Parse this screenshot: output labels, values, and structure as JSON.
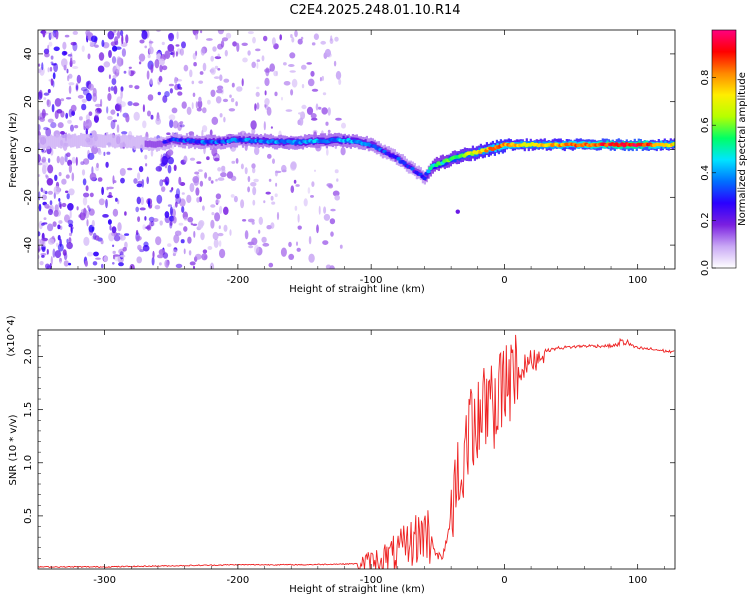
{
  "title": "C2E4.2025.248.01.10.R14",
  "chart_data": [
    {
      "type": "heatmap",
      "name": "spectrogram",
      "xlabel": "Height of straight line (km)",
      "ylabel": "Frequency (Hz)",
      "xlim": [
        -350,
        128
      ],
      "ylim": [
        -50,
        50
      ],
      "x_ticks": [
        -300,
        -200,
        -100,
        0,
        100
      ],
      "y_ticks": [
        -40,
        -20,
        0,
        20,
        40
      ],
      "colorbar": {
        "label": "Normalized spectral amplitude",
        "range": [
          0,
          1
        ],
        "ticks": [
          "0.0",
          "0.2",
          "0.4",
          "0.6",
          "0.8"
        ],
        "colors": [
          "#ffffff",
          "#c9a8f5",
          "#7a1fe0",
          "#2a00ff",
          "#0070ff",
          "#00e5ff",
          "#00ff66",
          "#b6ff00",
          "#ffee00",
          "#ff8800",
          "#ff0000",
          "#ff0080"
        ]
      },
      "ridge": {
        "x": [
          -350,
          -300,
          -260,
          -250,
          -220,
          -200,
          -160,
          -120,
          -100,
          -90,
          -80,
          -70,
          -60,
          -55,
          -45,
          -35,
          -20,
          -5,
          0,
          20,
          60,
          100,
          128
        ],
        "y": [
          3,
          4,
          2,
          4,
          3,
          4,
          3,
          4,
          2,
          -1,
          -4,
          -8,
          -12,
          -7,
          -5,
          -3,
          -1,
          1,
          2,
          2,
          2,
          2,
          2
        ],
        "amplitude": [
          0.12,
          0.2,
          0.25,
          0.3,
          0.35,
          0.35,
          0.38,
          0.4,
          0.35,
          0.3,
          0.3,
          0.28,
          0.3,
          0.5,
          0.55,
          0.6,
          0.7,
          0.85,
          0.8,
          0.7,
          0.85,
          0.95,
          0.7
        ]
      },
      "scatter_noise_region": [
        -350,
        -120
      ]
    },
    {
      "type": "line",
      "name": "snr",
      "xlabel": "Height of straight line (km)",
      "ylabel": "SNR (10 * v/v)",
      "y_multiplier": "(x10^4)",
      "xlim": [
        -350,
        128
      ],
      "ylim": [
        0,
        2.25
      ],
      "x_ticks": [
        -300,
        -200,
        -100,
        0,
        100
      ],
      "y_ticks": [
        0.5,
        1.0,
        1.5,
        2.0
      ],
      "series": [
        {
          "name": "SNR",
          "color": "#ee2222",
          "x": [
            -350,
            -300,
            -250,
            -200,
            -150,
            -110,
            -100,
            -90,
            -80,
            -70,
            -60,
            -55,
            -50,
            -45,
            -40,
            -35,
            -30,
            -25,
            -20,
            -15,
            -10,
            -5,
            0,
            10,
            20,
            30,
            40,
            60,
            80,
            90,
            100,
            110,
            128
          ],
          "y": [
            0.02,
            0.02,
            0.03,
            0.04,
            0.04,
            0.05,
            0.06,
            0.1,
            0.15,
            0.25,
            0.35,
            0.3,
            0.1,
            0.15,
            0.5,
            0.9,
            1.1,
            1.3,
            1.4,
            1.55,
            1.5,
            1.6,
            1.7,
            1.85,
            1.95,
            2.05,
            2.08,
            2.1,
            2.1,
            2.12,
            2.08,
            2.07,
            2.04
          ]
        }
      ]
    }
  ]
}
